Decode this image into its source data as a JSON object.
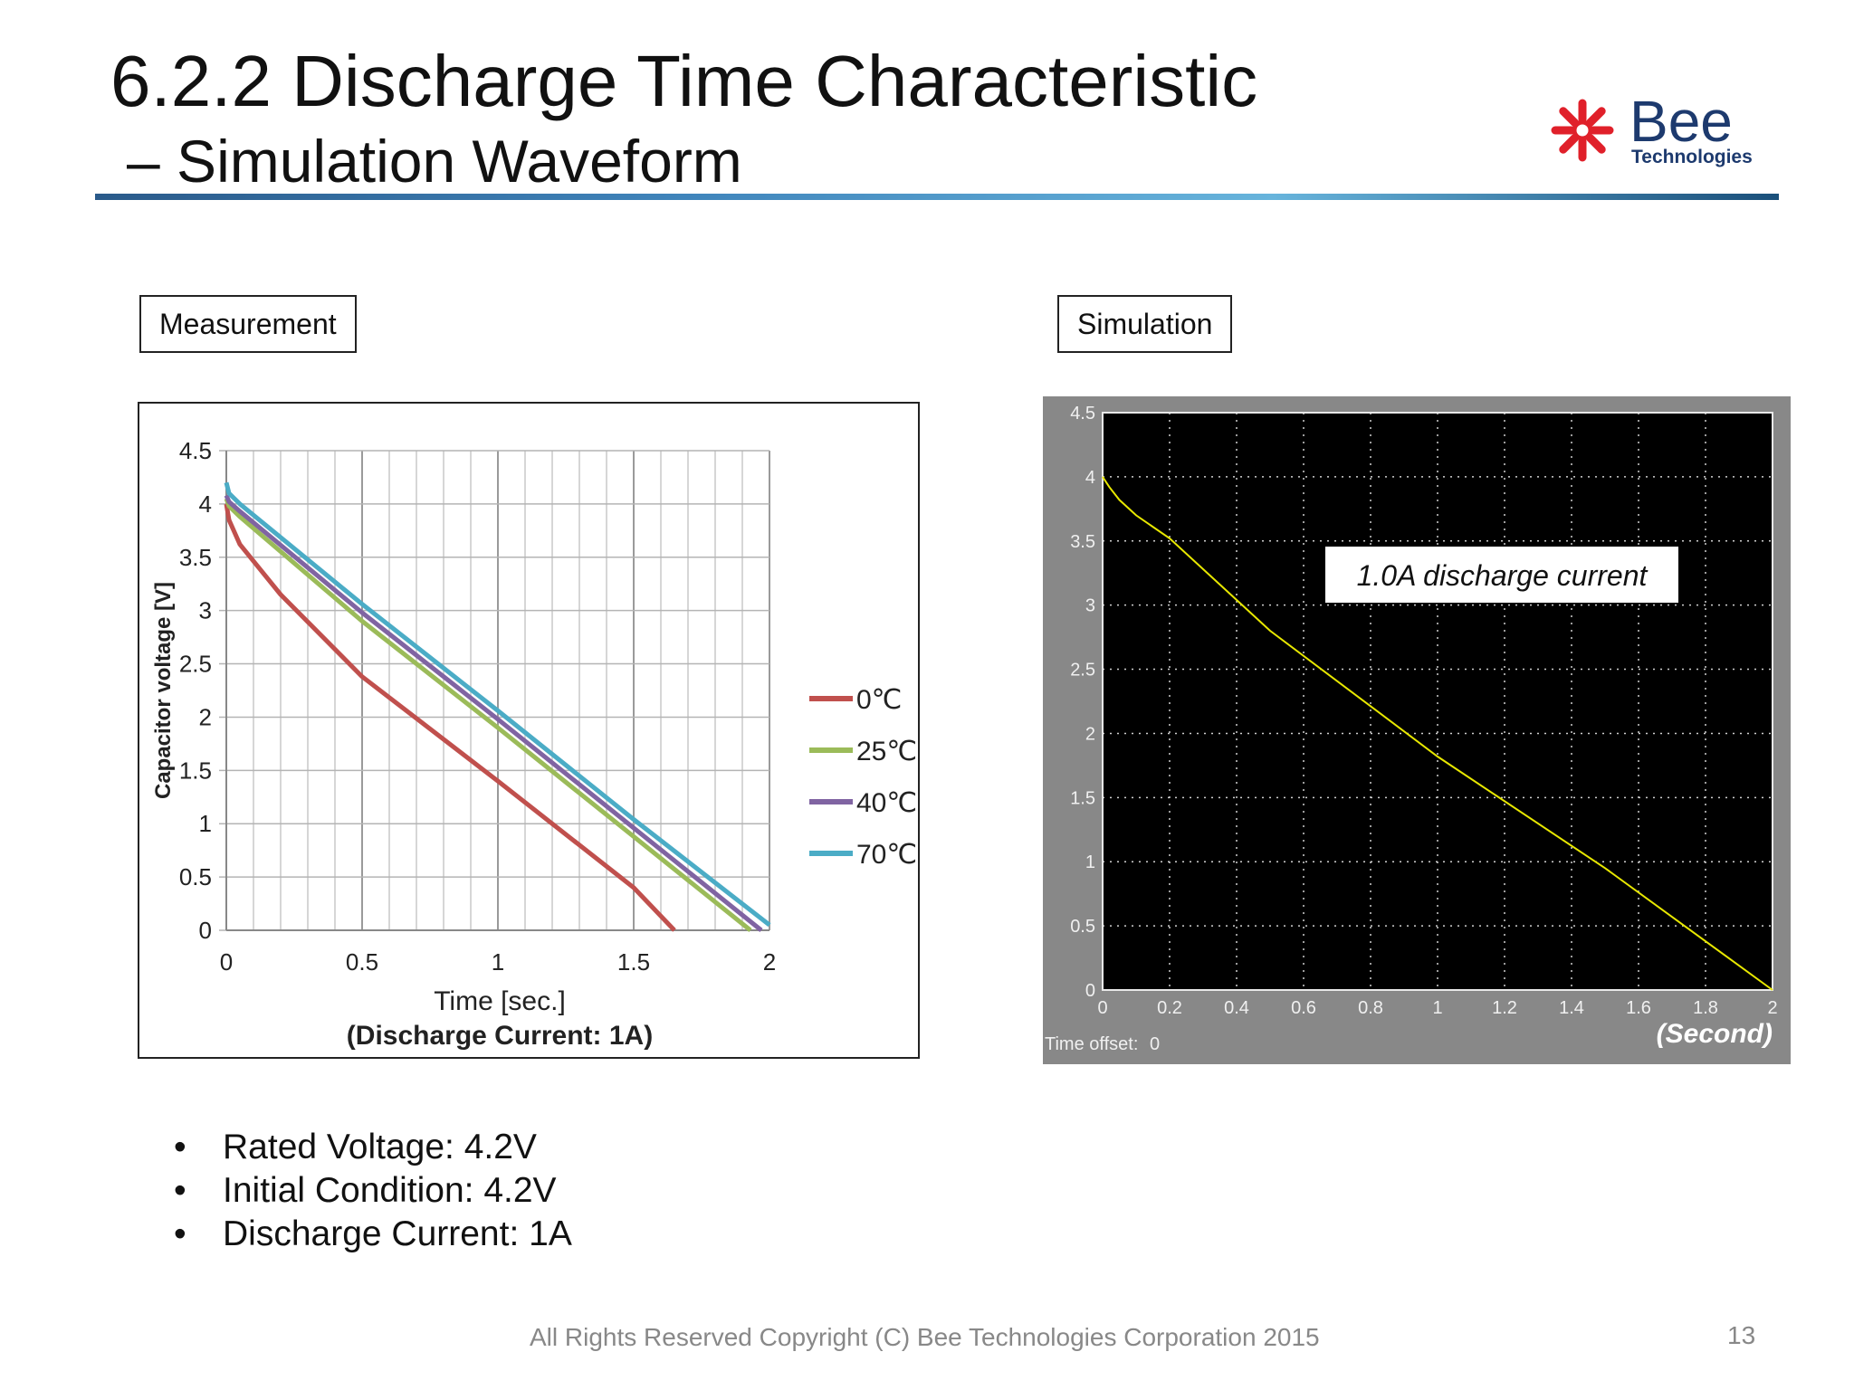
{
  "title": {
    "line1": "6.2.2 Discharge Time Characteristic",
    "line2": "– Simulation Waveform"
  },
  "logo": {
    "name": "Bee",
    "tagline": "Technologies",
    "colors": {
      "star": "#e0202a",
      "text": "#1d3a6e"
    }
  },
  "panels": {
    "measurement_label": "Measurement",
    "simulation_label": "Simulation"
  },
  "chart_data": [
    {
      "type": "line",
      "panel": "measurement",
      "xlabel": "Time [sec.]",
      "subtitle": "(Discharge Current: 1A)",
      "ylabel": "Capacitor voltage [V]",
      "xlim": [
        0,
        2
      ],
      "ylim": [
        0,
        4.5
      ],
      "xticks": [
        "0",
        "0.5",
        "1",
        "1.5",
        "2"
      ],
      "yticks": [
        "0",
        "0.5",
        "1",
        "1.5",
        "2",
        "2.5",
        "3",
        "3.5",
        "4",
        "4.5"
      ],
      "grid": true,
      "legend_position": "right",
      "series": [
        {
          "name": "0℃",
          "color": "#c0504d",
          "points": [
            [
              0,
              4.0
            ],
            [
              0.01,
              3.85
            ],
            [
              0.05,
              3.62
            ],
            [
              0.2,
              3.15
            ],
            [
              0.5,
              2.38
            ],
            [
              1.0,
              1.4
            ],
            [
              1.5,
              0.4
            ],
            [
              1.65,
              0.0
            ]
          ]
        },
        {
          "name": "25℃",
          "color": "#9bbb59",
          "points": [
            [
              0,
              4.05
            ],
            [
              0.01,
              3.98
            ],
            [
              0.05,
              3.88
            ],
            [
              0.5,
              2.9
            ],
            [
              1.0,
              1.9
            ],
            [
              1.5,
              0.88
            ],
            [
              1.93,
              0.0
            ]
          ]
        },
        {
          "name": "40℃",
          "color": "#8064a2",
          "points": [
            [
              0,
              4.08
            ],
            [
              0.01,
              4.02
            ],
            [
              0.05,
              3.93
            ],
            [
              0.5,
              2.98
            ],
            [
              1.0,
              1.98
            ],
            [
              1.5,
              0.96
            ],
            [
              1.97,
              0.0
            ]
          ]
        },
        {
          "name": "70℃",
          "color": "#4bacc6",
          "points": [
            [
              0,
              4.2
            ],
            [
              0.01,
              4.1
            ],
            [
              0.05,
              4.0
            ],
            [
              0.5,
              3.06
            ],
            [
              1.0,
              2.06
            ],
            [
              1.5,
              1.04
            ],
            [
              2.0,
              0.05
            ]
          ]
        }
      ]
    },
    {
      "type": "line",
      "panel": "simulation",
      "annotation": "1.0A discharge current",
      "xlabel": "(Second)",
      "time_offset_label": "Time offset:",
      "time_offset_value": "0",
      "xlim": [
        0,
        2
      ],
      "ylim": [
        0,
        4.5
      ],
      "xticks": [
        "0",
        "0.2",
        "0.4",
        "0.6",
        "0.8",
        "1",
        "1.2",
        "1.4",
        "1.6",
        "1.8",
        "2"
      ],
      "yticks": [
        "0",
        "0.5",
        "1",
        "1.5",
        "2",
        "2.5",
        "3",
        "3.5",
        "4",
        "4.5"
      ],
      "grid": true,
      "colors": {
        "background": "#000000",
        "frame": "#888888",
        "trace": "#e8e800"
      },
      "series": [
        {
          "color": "#e8e800",
          "points": [
            [
              0,
              4.0
            ],
            [
              0.02,
              3.92
            ],
            [
              0.05,
              3.82
            ],
            [
              0.1,
              3.7
            ],
            [
              0.2,
              3.52
            ],
            [
              0.5,
              2.8
            ],
            [
              1.0,
              1.82
            ],
            [
              1.5,
              0.95
            ],
            [
              2.0,
              0.0
            ]
          ]
        }
      ]
    }
  ],
  "bullets": [
    {
      "bullet": "•",
      "text": "Rated Voltage: 4.2V"
    },
    {
      "bullet": "•",
      "text": "Initial Condition: 4.2V"
    },
    {
      "bullet": "•",
      "text": "Discharge Current: 1A"
    }
  ],
  "footer": "All Rights Reserved Copyright (C) Bee Technologies Corporation 2015",
  "page_number": "13"
}
